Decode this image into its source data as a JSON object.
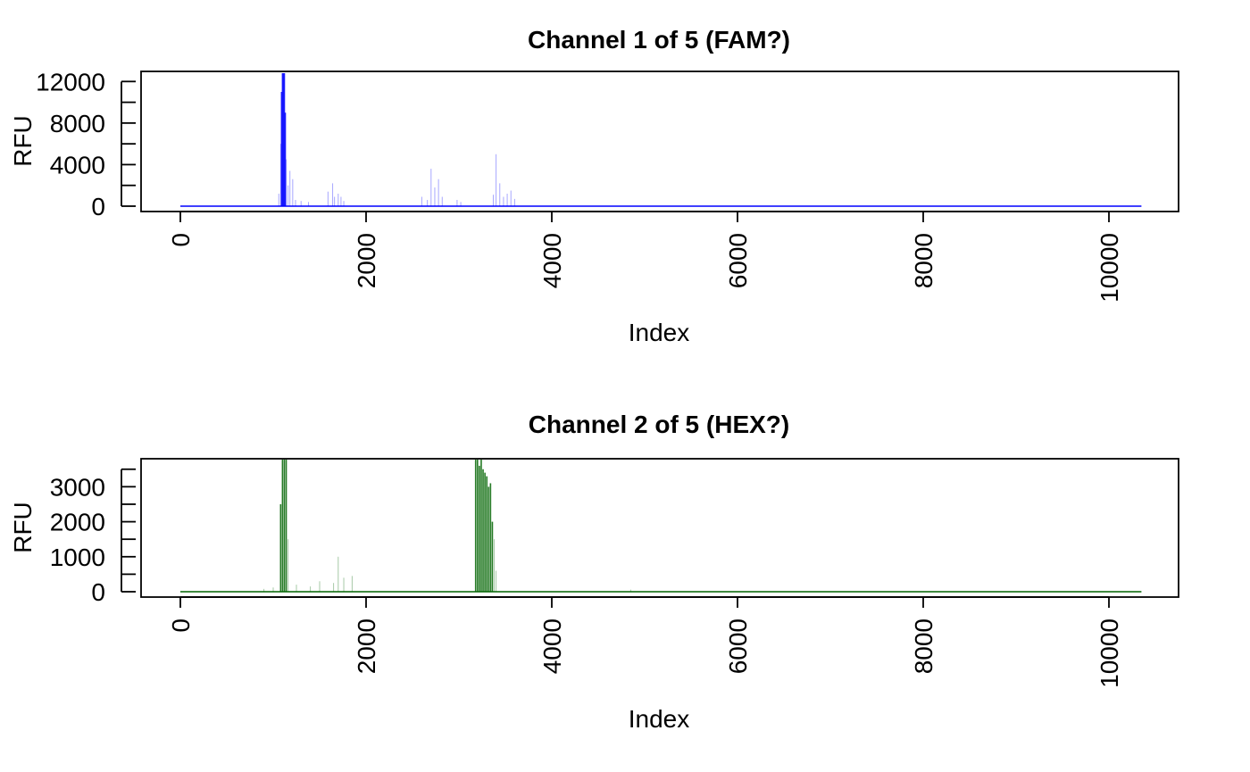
{
  "chart_data": [
    {
      "type": "line",
      "title": "Channel 1 of 5 (FAM?)",
      "xlabel": "Index",
      "ylabel": "RFU",
      "xlim": [
        0,
        10400
      ],
      "ylim": [
        0,
        12800
      ],
      "x_ticks": [
        0,
        2000,
        4000,
        6000,
        8000,
        10000
      ],
      "y_ticks": [
        0,
        4000,
        8000,
        12000
      ],
      "y_minor_ticks": [
        2000,
        6000,
        10000
      ],
      "color": "#0000ff",
      "grid": false,
      "x_range": [
        0,
        10350
      ],
      "peaks": [
        {
          "x": 1060,
          "y": 1200
        },
        {
          "x": 1080,
          "y": 6000
        },
        {
          "x": 1090,
          "y": 11000
        },
        {
          "x": 1100,
          "y": 12800
        },
        {
          "x": 1110,
          "y": 12800
        },
        {
          "x": 1120,
          "y": 12800
        },
        {
          "x": 1130,
          "y": 9000
        },
        {
          "x": 1140,
          "y": 4500
        },
        {
          "x": 1160,
          "y": 2000
        },
        {
          "x": 1180,
          "y": 3400
        },
        {
          "x": 1210,
          "y": 2600
        },
        {
          "x": 1240,
          "y": 600
        },
        {
          "x": 1300,
          "y": 500
        },
        {
          "x": 1380,
          "y": 400
        },
        {
          "x": 1590,
          "y": 1400
        },
        {
          "x": 1640,
          "y": 2200
        },
        {
          "x": 1660,
          "y": 900
        },
        {
          "x": 1700,
          "y": 1200
        },
        {
          "x": 1730,
          "y": 900
        },
        {
          "x": 1760,
          "y": 500
        },
        {
          "x": 2600,
          "y": 900
        },
        {
          "x": 2660,
          "y": 600
        },
        {
          "x": 2700,
          "y": 3600
        },
        {
          "x": 2740,
          "y": 1800
        },
        {
          "x": 2780,
          "y": 2600
        },
        {
          "x": 2820,
          "y": 900
        },
        {
          "x": 2980,
          "y": 600
        },
        {
          "x": 3020,
          "y": 400
        },
        {
          "x": 3370,
          "y": 1100
        },
        {
          "x": 3400,
          "y": 5000
        },
        {
          "x": 3440,
          "y": 2200
        },
        {
          "x": 3480,
          "y": 900
        },
        {
          "x": 3520,
          "y": 1200
        },
        {
          "x": 3560,
          "y": 1500
        },
        {
          "x": 3600,
          "y": 700
        }
      ]
    },
    {
      "type": "line",
      "title": "Channel 2 of 5 (HEX?)",
      "xlabel": "Index",
      "ylabel": "RFU",
      "xlim": [
        0,
        10400
      ],
      "ylim": [
        0,
        3800
      ],
      "x_ticks": [
        0,
        2000,
        4000,
        6000,
        8000,
        10000
      ],
      "y_ticks": [
        0,
        1000,
        2000,
        3000
      ],
      "y_minor_ticks": [
        500,
        1500,
        2500,
        3500
      ],
      "color": "#006400",
      "grid": false,
      "x_range": [
        0,
        10350
      ],
      "peaks": [
        {
          "x": 900,
          "y": 80
        },
        {
          "x": 1000,
          "y": 120
        },
        {
          "x": 1080,
          "y": 2500
        },
        {
          "x": 1100,
          "y": 3800
        },
        {
          "x": 1120,
          "y": 3800
        },
        {
          "x": 1140,
          "y": 3800
        },
        {
          "x": 1160,
          "y": 1500
        },
        {
          "x": 1250,
          "y": 200
        },
        {
          "x": 1400,
          "y": 150
        },
        {
          "x": 1500,
          "y": 300
        },
        {
          "x": 1650,
          "y": 250
        },
        {
          "x": 1700,
          "y": 1000
        },
        {
          "x": 1760,
          "y": 400
        },
        {
          "x": 1850,
          "y": 450
        },
        {
          "x": 3180,
          "y": 3800
        },
        {
          "x": 3200,
          "y": 3800
        },
        {
          "x": 3220,
          "y": 3600
        },
        {
          "x": 3240,
          "y": 3800
        },
        {
          "x": 3260,
          "y": 3500
        },
        {
          "x": 3280,
          "y": 3400
        },
        {
          "x": 3300,
          "y": 3300
        },
        {
          "x": 3320,
          "y": 3000
        },
        {
          "x": 3340,
          "y": 3100
        },
        {
          "x": 3360,
          "y": 2000
        },
        {
          "x": 3380,
          "y": 1500
        },
        {
          "x": 3400,
          "y": 600
        },
        {
          "x": 4850,
          "y": 60
        }
      ]
    }
  ]
}
